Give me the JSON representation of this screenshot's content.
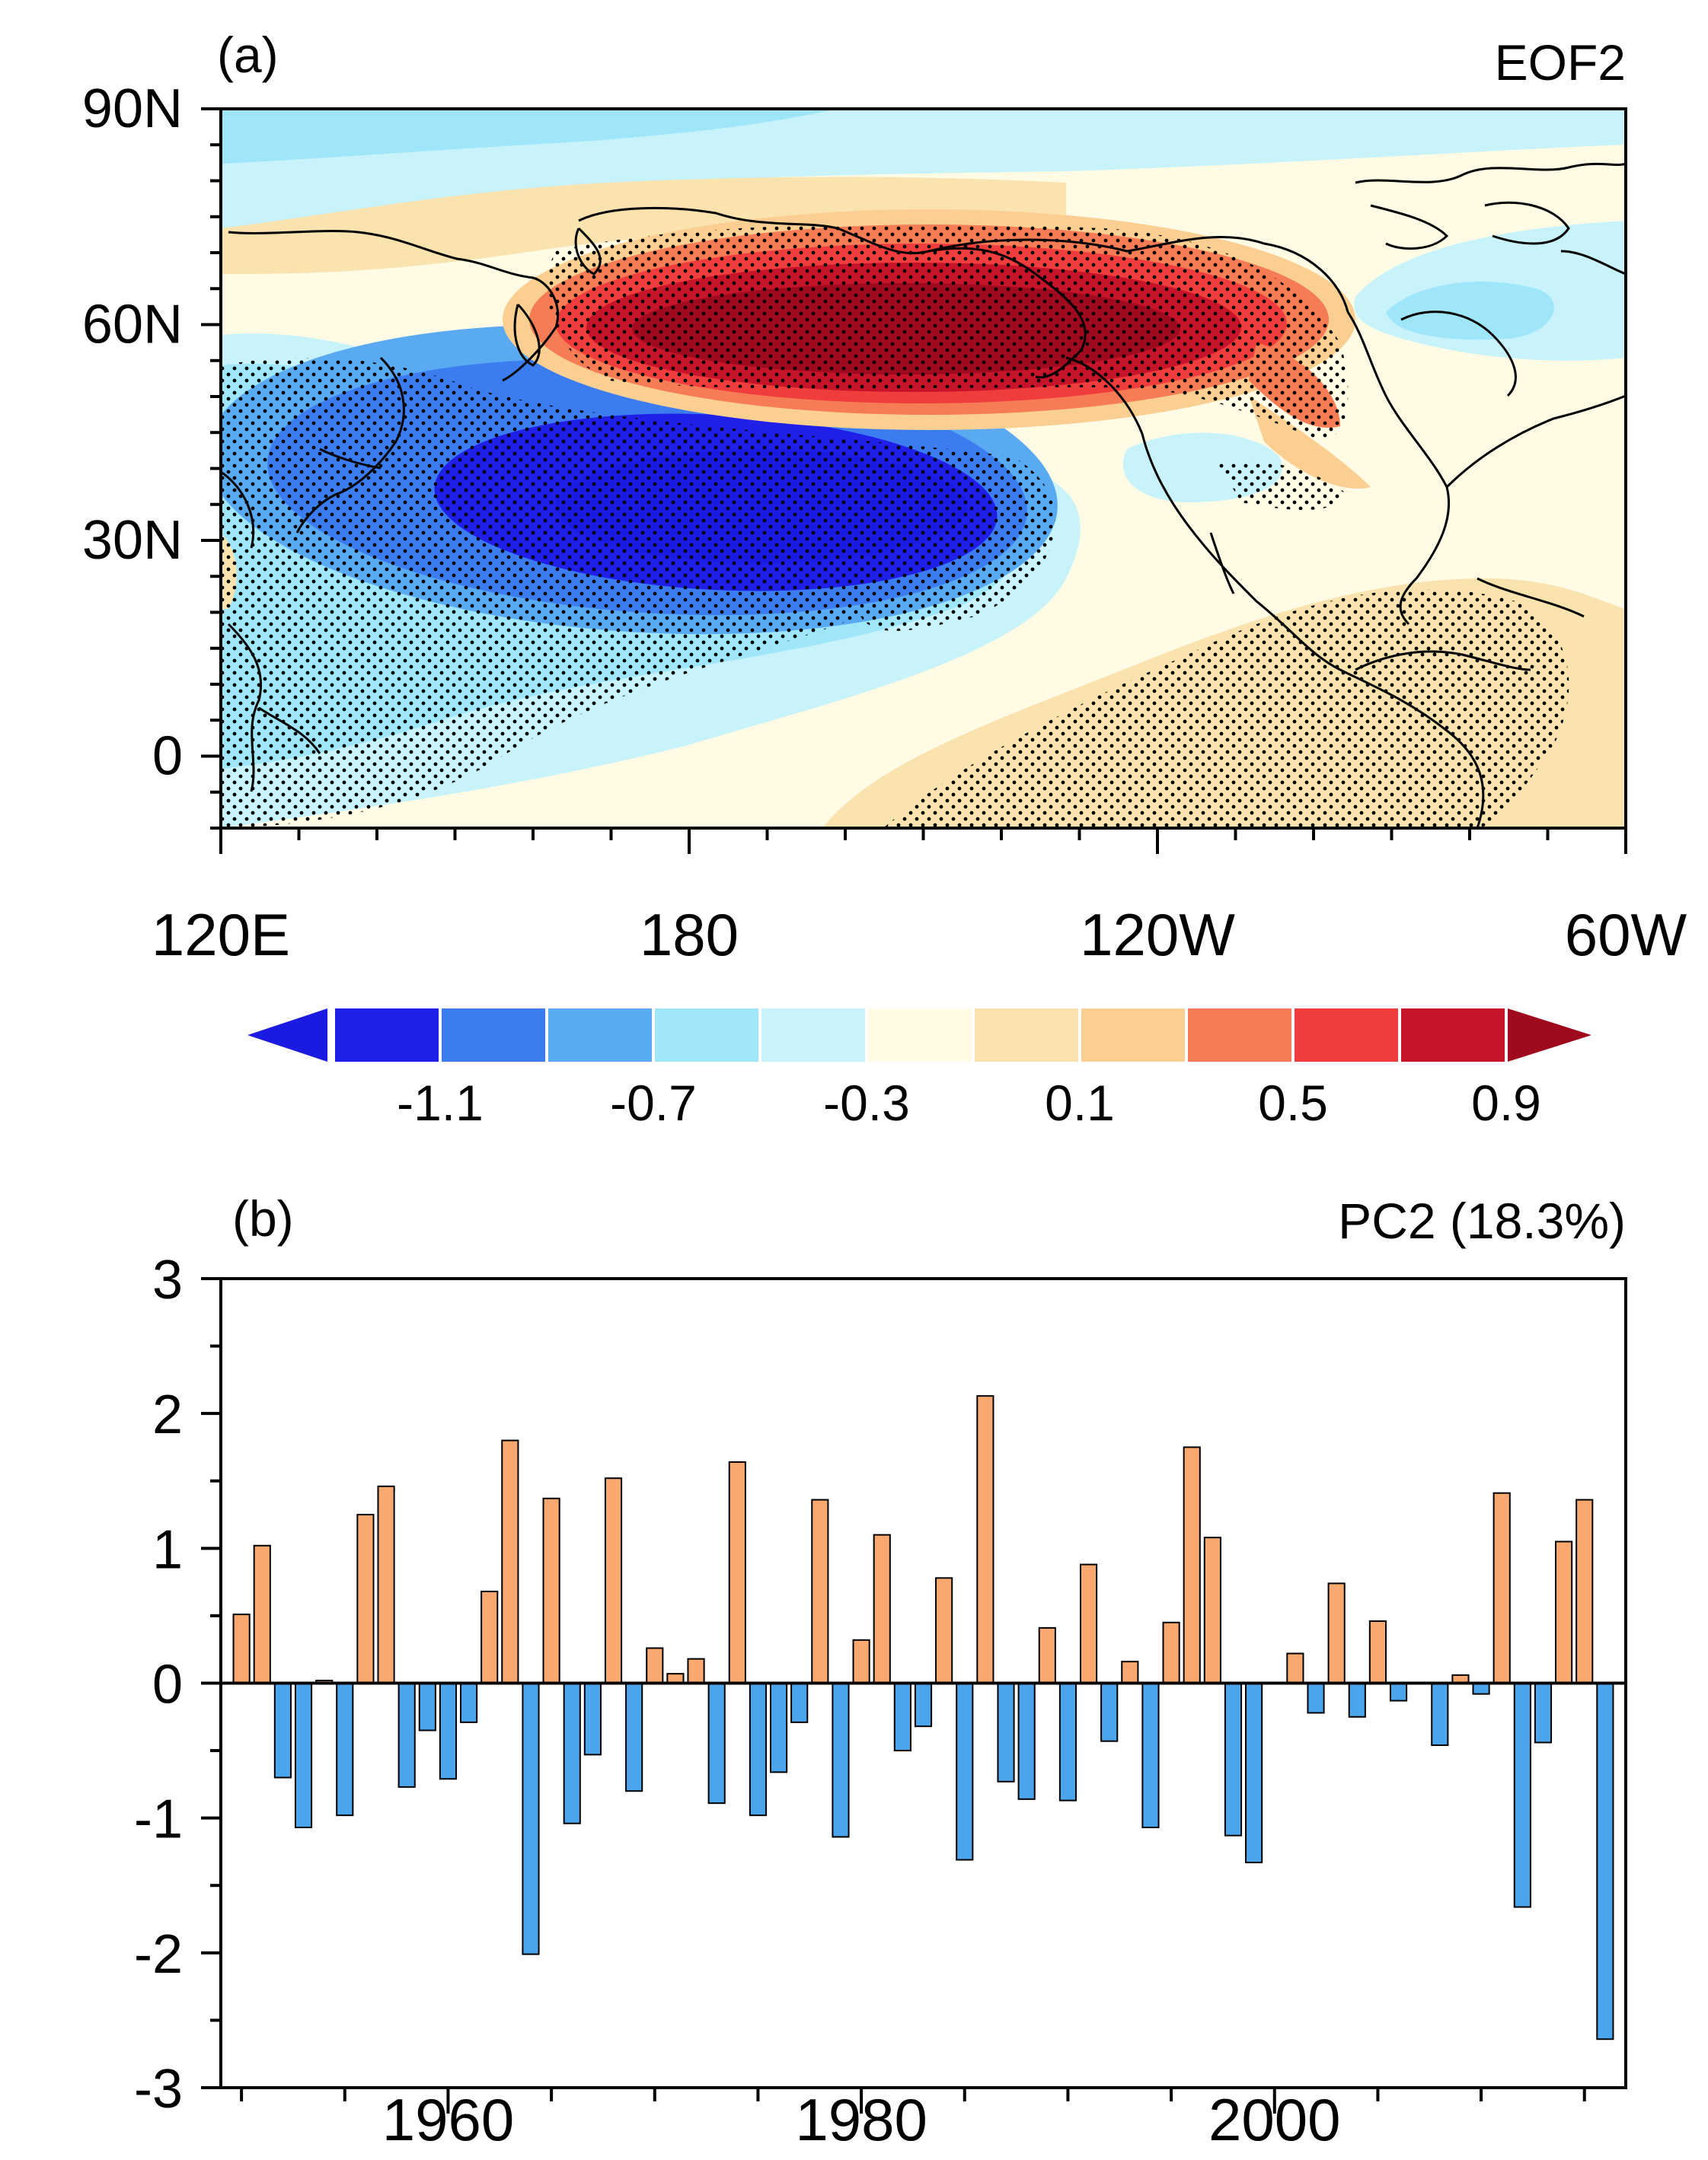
{
  "panel_a": {
    "label": "(a)",
    "title": "EOF2",
    "lat_labels": [
      "90N",
      "60N",
      "30N",
      "0"
    ],
    "lon_labels": [
      "120E",
      "180",
      "120W",
      "60W"
    ],
    "colorbar": {
      "labels": [
        "-1.1",
        "-0.7",
        "-0.3",
        "0.1",
        "0.5",
        "0.9"
      ],
      "colors": [
        "#1a1ae0",
        "#1f1fe8",
        "#3b7df0",
        "#5aaaf2",
        "#a0e6fa",
        "#c8f3fb",
        "#fffbe4",
        "#fbe3b0",
        "#fbcf91",
        "#f57c55",
        "#f03c3c",
        "#c8142a",
        "#a00a1e"
      ]
    }
  },
  "panel_b": {
    "label": "(b)",
    "title": "PC2 (18.3%)"
  },
  "chart_data": [
    {
      "type": "heatmap",
      "title": "EOF2",
      "xlabel": "",
      "ylabel": "",
      "x_range": [
        120,
        300
      ],
      "y_range": [
        -10,
        90
      ],
      "x_ticks": [
        "120E",
        "180",
        "120W",
        "60W"
      ],
      "y_ticks": [
        "90N",
        "60N",
        "30N",
        "0"
      ],
      "levels": [
        -1.1,
        -0.9,
        -0.7,
        -0.5,
        -0.3,
        -0.1,
        0.1,
        0.3,
        0.5,
        0.7,
        0.9,
        1.1
      ],
      "features": [
        {
          "name": "positive center",
          "lon": 210,
          "lat": 60,
          "value": 1.1
        },
        {
          "name": "negative center",
          "lon": 188,
          "lat": 36,
          "value": -1.1
        },
        {
          "name": "weak negative NW Pacific",
          "lon": 140,
          "lat": 20,
          "value": -0.3
        },
        {
          "name": "weak positive tropics",
          "lon": 255,
          "lat": 5,
          "value": 0.3
        }
      ],
      "stippling": "significant regions dotted"
    },
    {
      "type": "bar",
      "title": "PC2 (18.3%)",
      "xlabel": "",
      "ylabel": "",
      "ylim": [
        -3,
        3
      ],
      "xlim": [
        1949,
        2017
      ],
      "x_ticks": [
        1960,
        1980,
        2000
      ],
      "y_ticks": [
        3,
        2,
        1,
        0,
        -1,
        -2,
        -3
      ],
      "x": [
        1950,
        1951,
        1952,
        1953,
        1954,
        1955,
        1956,
        1957,
        1958,
        1959,
        1960,
        1961,
        1962,
        1963,
        1964,
        1965,
        1966,
        1967,
        1968,
        1969,
        1970,
        1971,
        1972,
        1973,
        1974,
        1975,
        1976,
        1977,
        1978,
        1979,
        1980,
        1981,
        1982,
        1983,
        1984,
        1985,
        1986,
        1987,
        1988,
        1989,
        1990,
        1991,
        1992,
        1993,
        1994,
        1995,
        1996,
        1997,
        1998,
        1999,
        2000,
        2001,
        2002,
        2003,
        2004,
        2005,
        2006,
        2007,
        2008,
        2009,
        2010,
        2011,
        2012,
        2013,
        2014,
        2015,
        2016
      ],
      "values": [
        0.51,
        1.02,
        -0.7,
        -1.07,
        0.02,
        -0.98,
        1.25,
        1.46,
        -0.77,
        -0.35,
        -0.71,
        -0.29,
        0.68,
        1.8,
        -2.01,
        1.37,
        -1.04,
        -0.53,
        1.52,
        -0.8,
        0.26,
        0.07,
        0.18,
        -0.89,
        1.64,
        -0.98,
        -0.66,
        -0.29,
        1.36,
        -1.14,
        0.32,
        1.1,
        -0.5,
        -0.32,
        0.78,
        -1.31,
        2.13,
        -0.73,
        -0.86,
        0.41,
        -0.87,
        0.88,
        -0.43,
        0.16,
        -1.07,
        0.45,
        1.75,
        1.08,
        -1.13,
        -1.33,
        0.0,
        0.22,
        -0.22,
        0.74,
        -0.25,
        0.46,
        -0.13,
        0.0,
        -0.46,
        0.06,
        -0.08,
        1.41,
        -1.66,
        -0.44,
        1.05,
        1.36,
        -2.64
      ],
      "positive_color": "#f9a86f",
      "negative_color": "#4aa5ec"
    }
  ]
}
